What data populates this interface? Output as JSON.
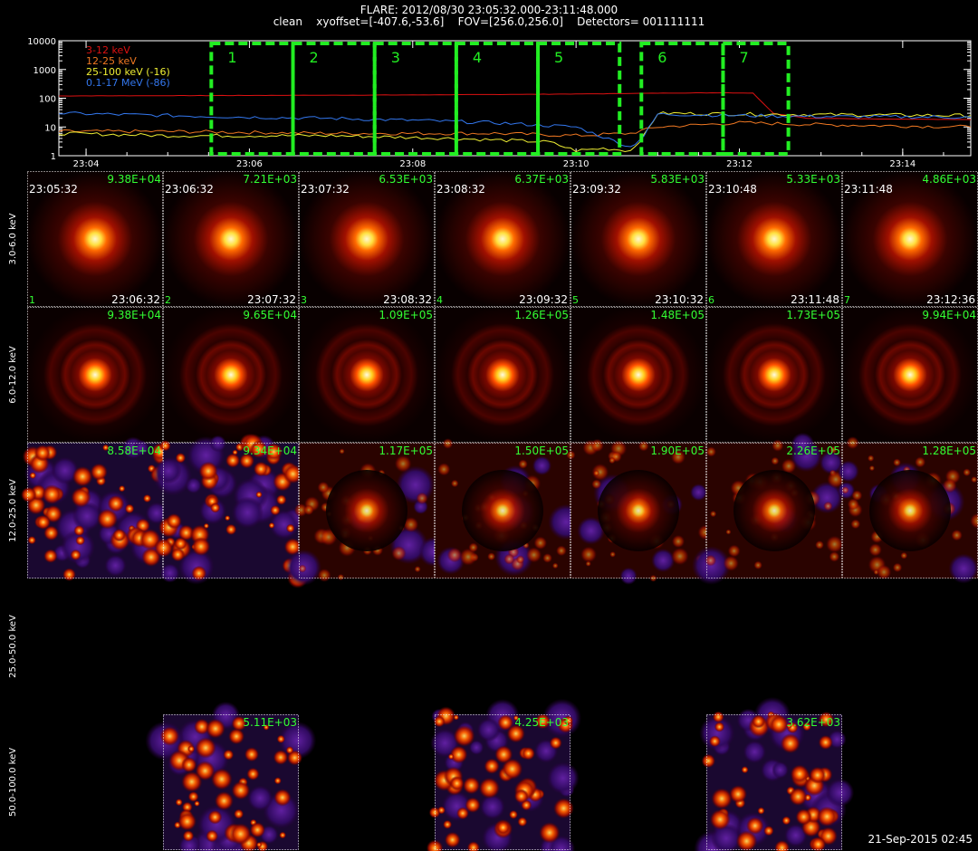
{
  "header": {
    "title": "FLARE: 2012/08/30 23:05:32.000-23:11:48.000",
    "subtitle": "clean    xyoffset=[-407.6,-53.6]    FOV=[256.0,256.0]    Detectors= 001111111"
  },
  "footer": {
    "timestamp": "21-Sep-2015 02:45"
  },
  "colors": {
    "grid_border": "#ffffff",
    "interval_box": "#22ee22",
    "text_green": "#33ff33"
  },
  "chart_data": [
    {
      "type": "line",
      "title": "",
      "xlabel": "",
      "ylabel": "",
      "y_scale": "log",
      "ylim": [
        1,
        10000
      ],
      "yticks": [
        "1",
        "10",
        "100",
        "1000",
        "10000"
      ],
      "xlim": [
        "23:03:40",
        "23:14:50"
      ],
      "xticks": [
        "23:04",
        "23:06",
        "23:08",
        "23:10",
        "23:12",
        "23:14"
      ],
      "legend_placement": "top-left",
      "series": [
        {
          "name": "3-12 keV",
          "color": "#dd1111",
          "t": [
            "23:03:40",
            "23:06:00",
            "23:08:00",
            "23:10:00",
            "23:11:00",
            "23:11:48",
            "23:12:10",
            "23:12:25",
            "23:12:50",
            "23:14:50"
          ],
          "values": [
            120,
            125,
            130,
            140,
            150,
            155,
            150,
            30,
            20,
            18
          ]
        },
        {
          "name": "12-25 keV",
          "color": "#ee7722",
          "t": [
            "23:03:40",
            "23:05:00",
            "23:07:00",
            "23:09:00",
            "23:10:00",
            "23:10:40",
            "23:11:00",
            "23:12:00",
            "23:13:00",
            "23:14:50"
          ],
          "values": [
            7,
            7,
            6,
            6,
            5,
            6,
            10,
            14,
            12,
            10
          ]
        },
        {
          "name": "25-100 keV (-16)",
          "color": "#eeee33",
          "t": [
            "23:03:40",
            "23:05:00",
            "23:07:00",
            "23:08:30",
            "23:09:40",
            "23:10:00",
            "23:10:20",
            "23:10:40",
            "23:10:50",
            "23:11:00",
            "23:12:00",
            "23:14:50"
          ],
          "values": [
            6,
            5,
            5,
            4,
            3,
            1.5,
            1.8,
            1.5,
            5,
            30,
            28,
            25
          ]
        },
        {
          "name": "0.1-17 MeV (-86)",
          "color": "#3377ee",
          "t": [
            "23:03:40",
            "23:05:00",
            "23:06:00",
            "23:07:00",
            "23:08:00",
            "23:09:00",
            "23:10:00",
            "23:10:40",
            "23:10:50",
            "23:11:00",
            "23:12:00",
            "23:13:00",
            "23:14:50"
          ],
          "values": [
            30,
            25,
            22,
            20,
            17,
            14,
            10,
            2,
            5,
            28,
            25,
            23,
            22
          ]
        }
      ],
      "intervals": [
        {
          "label": "1",
          "start": "23:05:32",
          "end": "23:06:32"
        },
        {
          "label": "2",
          "start": "23:06:32",
          "end": "23:07:32"
        },
        {
          "label": "3",
          "start": "23:07:32",
          "end": "23:08:32"
        },
        {
          "label": "4",
          "start": "23:08:32",
          "end": "23:09:32"
        },
        {
          "label": "5",
          "start": "23:09:32",
          "end": "23:10:32"
        },
        {
          "label": "6",
          "start": "23:10:48",
          "end": "23:11:48"
        },
        {
          "label": "7",
          "start": "23:11:48",
          "end": "23:12:36"
        }
      ]
    },
    {
      "type": "heatmap",
      "title": "",
      "energy_bands": [
        "3.0-6.0 keV",
        "6.0-12.0 keV",
        "12.0-25.0 keV",
        "25.0-50.0 keV",
        "50.0-100.0 keV"
      ],
      "intervals": [
        {
          "index": "1",
          "start": "23:05:32",
          "end": "23:06:32"
        },
        {
          "index": "2",
          "start": "23:06:32",
          "end": "23:07:32"
        },
        {
          "index": "3",
          "start": "23:07:32",
          "end": "23:08:32"
        },
        {
          "index": "4",
          "start": "23:08:32",
          "end": "23:09:32"
        },
        {
          "index": "5",
          "start": "23:09:32",
          "end": "23:10:32"
        },
        {
          "index": "6",
          "start": "23:10:48",
          "end": "23:11:48"
        },
        {
          "index": "7",
          "start": "23:11:48",
          "end": "23:12:36"
        }
      ],
      "peaks": [
        [
          "9.38E+04",
          "7.21E+03",
          "6.53E+03",
          "6.37E+03",
          "5.83E+03",
          "5.33E+03",
          "4.86E+03"
        ],
        [
          "9.38E+04",
          "9.65E+04",
          "1.09E+05",
          "1.26E+05",
          "1.48E+05",
          "1.73E+05",
          "9.94E+04"
        ],
        [
          "8.58E+04",
          "9.34E+04",
          "1.17E+05",
          "1.50E+05",
          "1.90E+05",
          "2.26E+05",
          "1.28E+05"
        ],
        [
          null,
          null,
          null,
          null,
          null,
          null,
          null
        ],
        [
          null,
          "5.11E+03",
          null,
          "4.25E+03",
          null,
          "3.62E+03",
          null
        ]
      ],
      "image_type": [
        [
          "source",
          "source",
          "source",
          "source",
          "source",
          "source",
          "source"
        ],
        [
          "ring",
          "ring",
          "ring",
          "ring",
          "ring",
          "ring",
          "ring"
        ],
        [
          "noise",
          "noise",
          "mixed",
          "mixed",
          "mixed",
          "mixed",
          "mixed"
        ],
        [
          null,
          null,
          null,
          null,
          null,
          null,
          null
        ],
        [
          null,
          "noise",
          null,
          "noise",
          null,
          "noise",
          null
        ]
      ]
    }
  ]
}
